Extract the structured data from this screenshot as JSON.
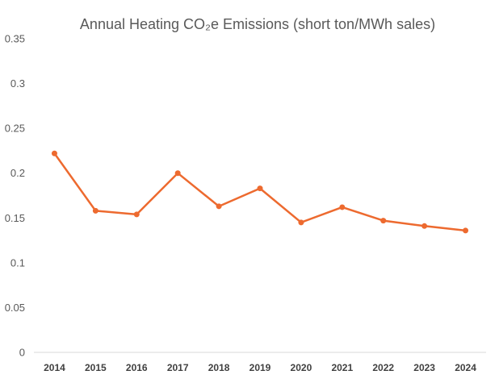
{
  "chart_data": {
    "type": "line",
    "title": "Annual Heating CO₂e Emissions (short ton/MWh sales)",
    "xlabel": "",
    "ylabel": "",
    "categories": [
      "2014",
      "2015",
      "2016",
      "2017",
      "2018",
      "2019",
      "2020",
      "2021",
      "2022",
      "2023",
      "2024"
    ],
    "series": [
      {
        "values": [
          0.222,
          0.158,
          0.154,
          0.2,
          0.163,
          0.183,
          0.145,
          0.162,
          0.147,
          0.141,
          0.136
        ],
        "color": "#ED6A2F"
      }
    ],
    "ylim": [
      0,
      0.35
    ],
    "yticks": [
      "0",
      "0.05",
      "0.1",
      "0.15",
      "0.2",
      "0.25",
      "0.3",
      "0.35"
    ],
    "grid": false,
    "legend": "none",
    "axis_color": "#D9D9D9"
  }
}
